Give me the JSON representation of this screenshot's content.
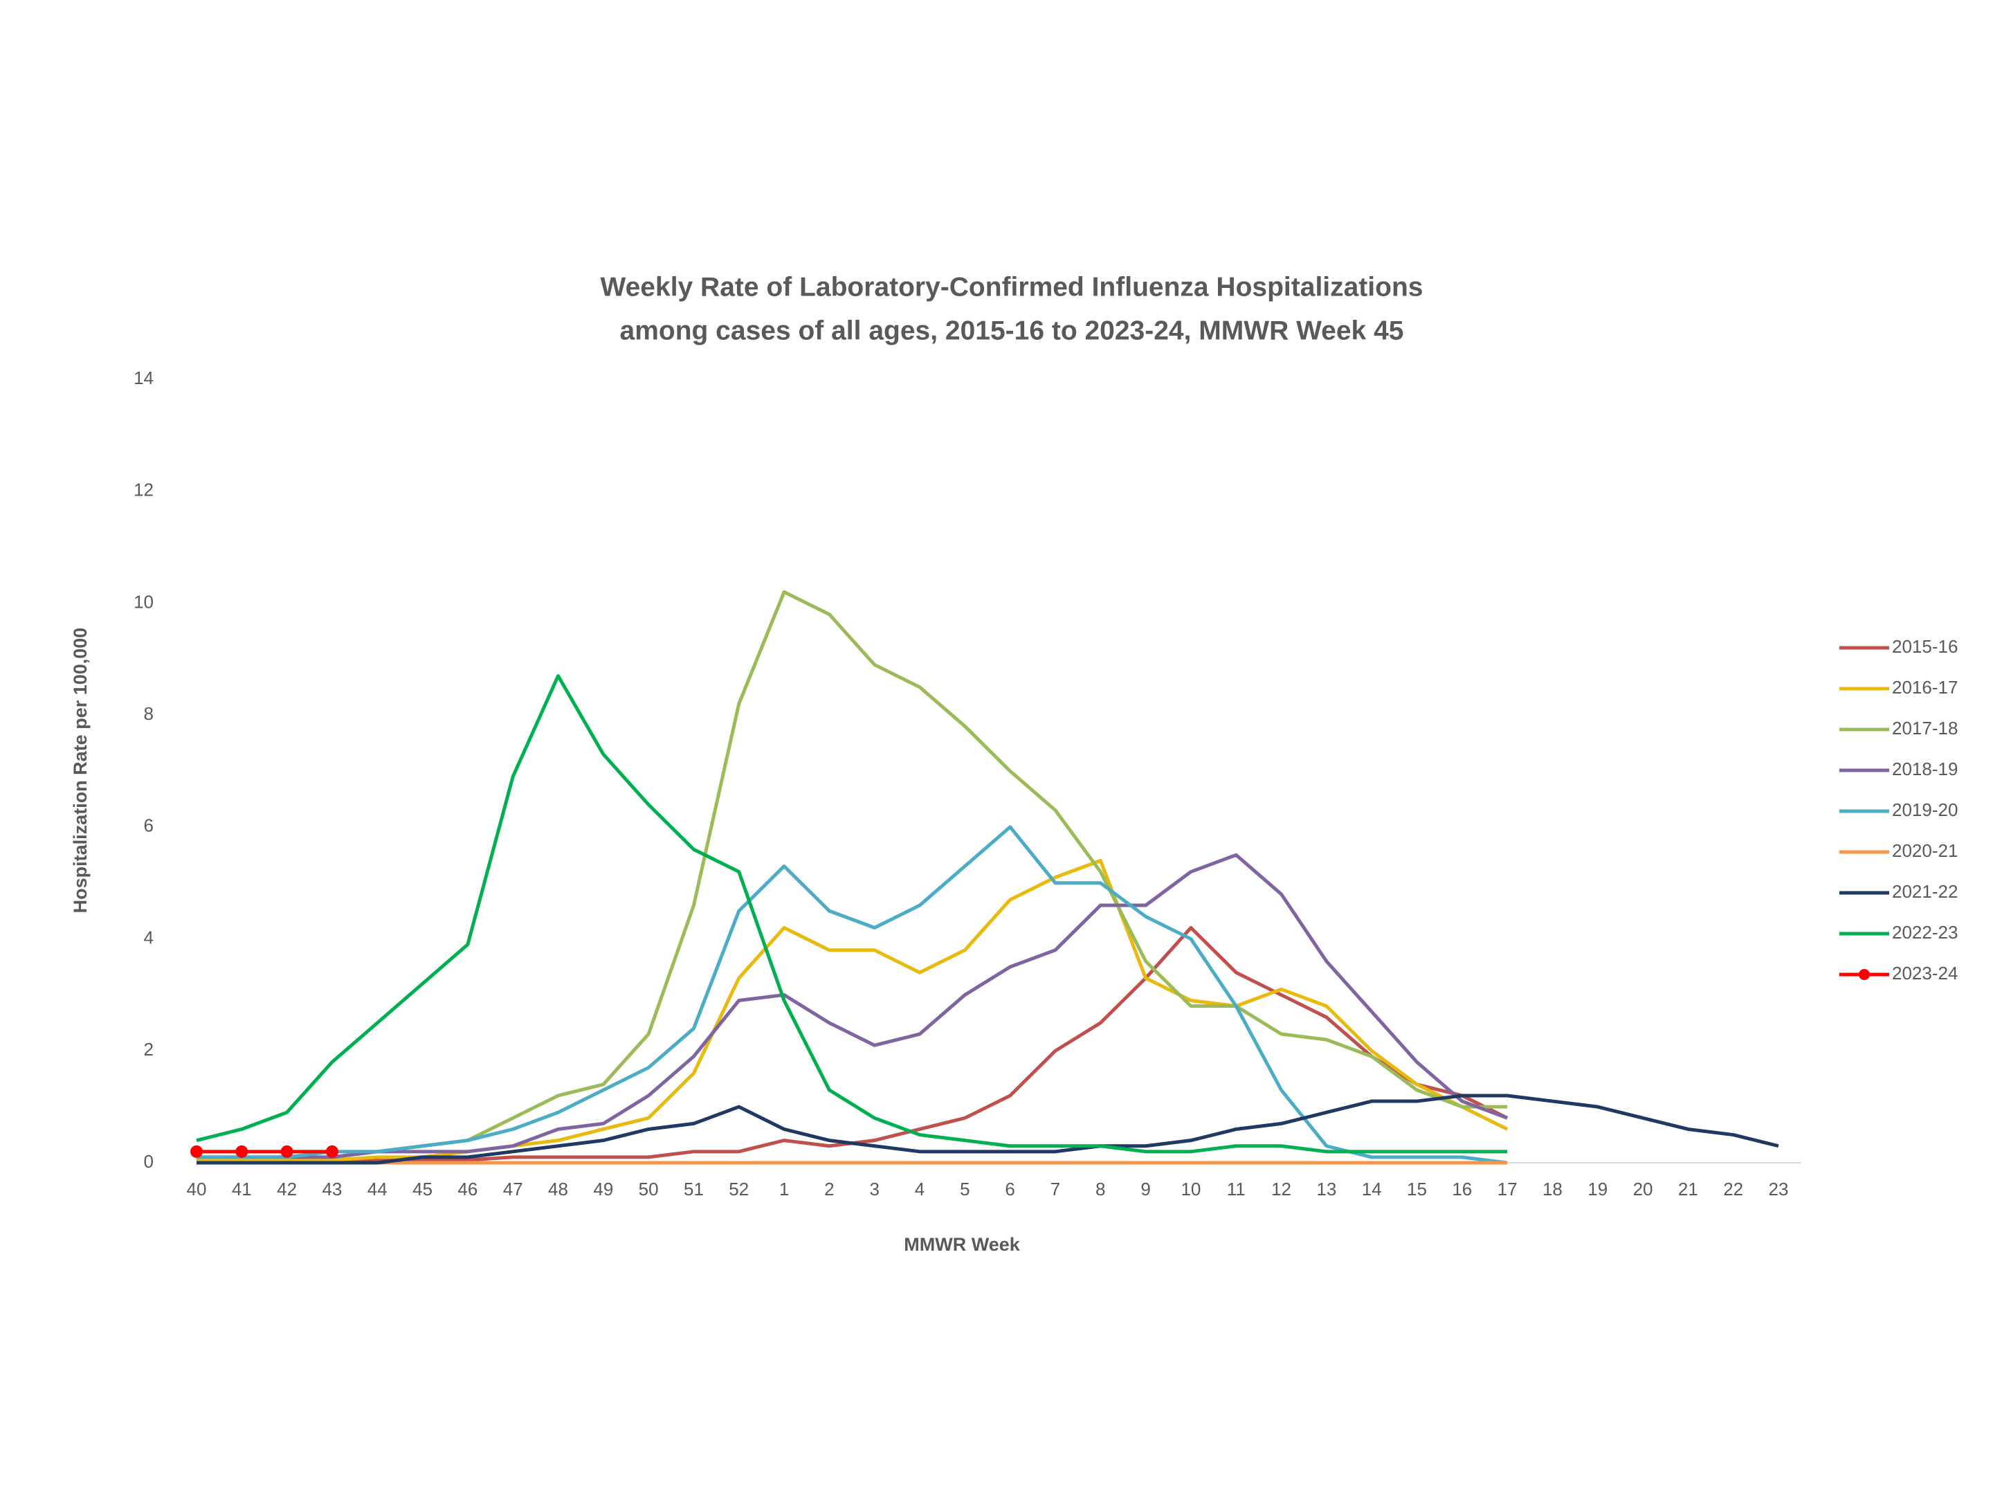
{
  "chart_data": {
    "type": "line",
    "title": [
      "Weekly Rate of Laboratory-Confirmed Influenza Hospitalizations",
      "among cases of all ages, 2015-16 to 2023-24, MMWR Week 45"
    ],
    "x_label": "MMWR Week",
    "y_label": "Hospitalization Rate per 100,000",
    "categories": [
      "40",
      "41",
      "42",
      "43",
      "44",
      "45",
      "46",
      "47",
      "48",
      "49",
      "50",
      "51",
      "52",
      "1",
      "2",
      "3",
      "4",
      "5",
      "6",
      "7",
      "8",
      "9",
      "10",
      "11",
      "12",
      "13",
      "14",
      "15",
      "16",
      "17",
      "18",
      "19",
      "20",
      "21",
      "22",
      "23"
    ],
    "ylim": [
      0,
      14
    ],
    "yticks": [
      0,
      2,
      4,
      6,
      8,
      10,
      12,
      14
    ],
    "grid": false,
    "legend": "right",
    "series": [
      {
        "name": "2015-16",
        "color": "#c0504d",
        "values": [
          0.05,
          0.05,
          0.05,
          0.05,
          0.05,
          0.05,
          0.05,
          0.1,
          0.1,
          0.1,
          0.1,
          0.2,
          0.2,
          0.4,
          0.3,
          0.4,
          0.6,
          0.8,
          1.2,
          2.0,
          2.5,
          3.3,
          4.2,
          3.4,
          3.0,
          2.6,
          1.9,
          1.4,
          1.2,
          0.8,
          null,
          null,
          null,
          null,
          null,
          null
        ]
      },
      {
        "name": "2016-17",
        "color": "#e8b90e",
        "values": [
          0.05,
          0.05,
          0.05,
          0.05,
          0.1,
          0.1,
          0.2,
          0.3,
          0.4,
          0.6,
          0.8,
          1.6,
          3.3,
          4.2,
          3.8,
          3.8,
          3.4,
          3.8,
          4.7,
          5.1,
          5.4,
          3.3,
          2.9,
          2.8,
          3.1,
          2.8,
          2.0,
          1.4,
          1.0,
          0.6,
          null,
          null,
          null,
          null,
          null,
          null
        ]
      },
      {
        "name": "2017-18",
        "color": "#9bbb59",
        "values": [
          0.1,
          0.1,
          0.1,
          0.1,
          0.2,
          0.3,
          0.4,
          0.8,
          1.2,
          1.4,
          2.3,
          4.6,
          8.2,
          10.2,
          9.8,
          8.9,
          8.5,
          7.8,
          7.0,
          6.3,
          5.2,
          3.6,
          2.8,
          2.8,
          2.3,
          2.2,
          1.9,
          1.3,
          1.0,
          1.0,
          null,
          null,
          null,
          null,
          null,
          null
        ]
      },
      {
        "name": "2018-19",
        "color": "#8064a2",
        "values": [
          0.1,
          0.1,
          0.1,
          0.1,
          0.2,
          0.2,
          0.2,
          0.3,
          0.6,
          0.7,
          1.2,
          1.9,
          2.9,
          3.0,
          2.5,
          2.1,
          2.3,
          3.0,
          3.5,
          3.8,
          4.6,
          4.6,
          5.2,
          5.5,
          4.8,
          3.6,
          2.7,
          1.8,
          1.1,
          0.8,
          null,
          null,
          null,
          null,
          null,
          null
        ]
      },
      {
        "name": "2019-20",
        "color": "#4bacc6",
        "values": [
          0.1,
          0.1,
          0.1,
          0.2,
          0.2,
          0.3,
          0.4,
          0.6,
          0.9,
          1.3,
          1.7,
          2.4,
          4.5,
          5.3,
          4.5,
          4.2,
          4.6,
          5.3,
          6.0,
          5.0,
          5.0,
          4.4,
          4.0,
          2.8,
          1.3,
          0.3,
          0.1,
          0.1,
          0.1,
          0.0,
          null,
          null,
          null,
          null,
          null,
          null
        ]
      },
      {
        "name": "2020-21",
        "color": "#f79646",
        "values": [
          0,
          0,
          0,
          0,
          0,
          0,
          0,
          0,
          0,
          0,
          0,
          0,
          0,
          0,
          0,
          0,
          0,
          0,
          0,
          0,
          0,
          0,
          0,
          0,
          0,
          0,
          0,
          0,
          0,
          0,
          null,
          null,
          null,
          null,
          null,
          null
        ]
      },
      {
        "name": "2021-22",
        "color": "#1f3864",
        "values": [
          0,
          0,
          0,
          0,
          0,
          0.1,
          0.1,
          0.2,
          0.3,
          0.4,
          0.6,
          0.7,
          1.0,
          0.6,
          0.4,
          0.3,
          0.2,
          0.2,
          0.2,
          0.2,
          0.3,
          0.3,
          0.4,
          0.6,
          0.7,
          0.9,
          1.1,
          1.1,
          1.2,
          1.2,
          1.1,
          1.0,
          0.8,
          0.6,
          0.5,
          0.3
        ]
      },
      {
        "name": "2022-23",
        "color": "#00b050",
        "values": [
          0.4,
          0.6,
          0.9,
          1.8,
          2.5,
          3.2,
          3.9,
          6.9,
          8.7,
          7.3,
          6.4,
          5.6,
          5.2,
          2.9,
          1.3,
          0.8,
          0.5,
          0.4,
          0.3,
          0.3,
          0.3,
          0.2,
          0.2,
          0.3,
          0.3,
          0.2,
          0.2,
          0.2,
          0.2,
          0.2,
          null,
          null,
          null,
          null,
          null,
          null
        ]
      },
      {
        "name": "2023-24",
        "color": "#ff0000",
        "markers": true,
        "values": [
          0.2,
          0.2,
          0.2,
          0.2,
          null,
          null,
          null,
          null,
          null,
          null,
          null,
          null,
          null,
          null,
          null,
          null,
          null,
          null,
          null,
          null,
          null,
          null,
          null,
          null,
          null,
          null,
          null,
          null,
          null,
          null,
          null,
          null,
          null,
          null,
          null,
          null
        ]
      }
    ]
  }
}
